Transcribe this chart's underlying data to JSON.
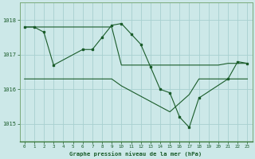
{
  "background_color": "#cce8e8",
  "grid_color": "#a8d0d0",
  "line_color": "#1a5c2a",
  "title": "Graphe pression niveau de la mer (hPa)",
  "xlim": [
    -0.5,
    23.5
  ],
  "ylim": [
    1014.5,
    1018.5
  ],
  "yticks": [
    1015,
    1016,
    1017,
    1018
  ],
  "xticks": [
    0,
    1,
    2,
    3,
    4,
    5,
    6,
    7,
    8,
    9,
    10,
    11,
    12,
    13,
    14,
    15,
    16,
    17,
    18,
    19,
    20,
    21,
    22,
    23
  ],
  "series1_x": [
    0,
    1,
    2,
    3,
    4,
    5,
    6,
    7,
    8,
    9,
    10,
    11,
    12,
    13,
    14,
    15,
    16,
    17,
    18,
    19,
    20,
    21,
    22,
    23
  ],
  "series1_y": [
    1017.8,
    1017.8,
    1017.8,
    1017.8,
    1017.8,
    1017.8,
    1017.8,
    1017.8,
    1017.8,
    1017.8,
    1016.7,
    1016.7,
    1016.7,
    1016.7,
    1016.7,
    1016.7,
    1016.7,
    1016.7,
    1016.7,
    1016.7,
    1016.7,
    1016.75,
    1016.75,
    1016.75
  ],
  "series2_x": [
    0,
    1,
    2,
    3,
    4,
    5,
    6,
    7,
    8,
    9,
    10,
    11,
    12,
    13,
    14,
    15,
    16,
    17,
    18,
    19,
    20,
    21,
    22,
    23
  ],
  "series2_y": [
    1016.3,
    1016.3,
    1016.3,
    1016.3,
    1016.3,
    1016.3,
    1016.3,
    1016.3,
    1016.3,
    1016.3,
    1016.1,
    1015.95,
    1015.8,
    1015.65,
    1015.5,
    1015.35,
    1015.6,
    1015.85,
    1016.3,
    1016.3,
    1016.3,
    1016.3,
    1016.3,
    1016.3
  ],
  "series3_x": [
    0,
    1,
    2,
    3,
    6,
    7,
    8,
    9,
    10,
    11,
    12,
    13,
    14,
    15,
    16,
    17,
    18,
    21,
    22,
    23
  ],
  "series3_y": [
    1017.8,
    1017.8,
    1017.65,
    1016.7,
    1017.15,
    1017.15,
    1017.5,
    1017.85,
    1017.9,
    1017.6,
    1017.3,
    1016.65,
    1016.0,
    1015.9,
    1015.2,
    1014.9,
    1015.75,
    1016.3,
    1016.8,
    1016.75
  ]
}
